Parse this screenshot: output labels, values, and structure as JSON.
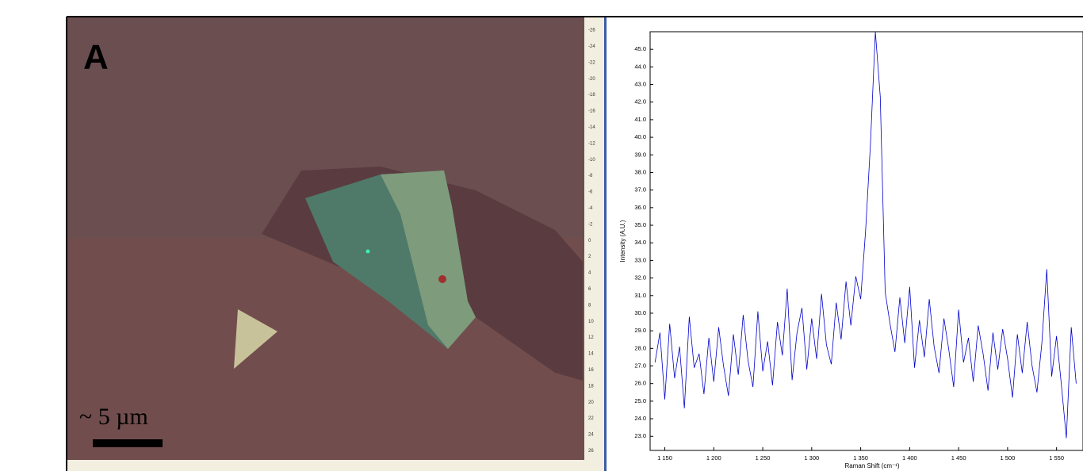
{
  "panel_label": "A",
  "scale_bar": "~ 5 µm",
  "ruler_labels": [
    "-26",
    "-24",
    "-22",
    "-20",
    "-18",
    "-16",
    "-14",
    "-12",
    "-10",
    "-8",
    "-6",
    "-4",
    "-2",
    "0",
    "2",
    "4",
    "6",
    "8",
    "10",
    "12",
    "14",
    "16",
    "18",
    "20",
    "22",
    "24",
    "26"
  ],
  "chart_data": {
    "type": "line",
    "ylabel": "Intensity (A.U.)",
    "xlabel": "Raman Shift (cm⁻¹)",
    "color": "#0000cc",
    "x": [
      1140,
      1145,
      1150,
      1155,
      1160,
      1165,
      1170,
      1175,
      1180,
      1185,
      1190,
      1195,
      1200,
      1205,
      1210,
      1215,
      1220,
      1225,
      1230,
      1235,
      1240,
      1245,
      1250,
      1255,
      1260,
      1265,
      1270,
      1275,
      1280,
      1285,
      1290,
      1295,
      1300,
      1305,
      1310,
      1315,
      1320,
      1325,
      1330,
      1335,
      1340,
      1345,
      1350,
      1355,
      1360,
      1365,
      1370,
      1375,
      1380,
      1385,
      1390,
      1395,
      1400,
      1405,
      1410,
      1415,
      1420,
      1425,
      1430,
      1435,
      1440,
      1445,
      1450,
      1455,
      1460,
      1465,
      1470,
      1475,
      1480,
      1485,
      1490,
      1495,
      1500,
      1505,
      1510,
      1515,
      1520,
      1525,
      1530,
      1535,
      1540,
      1545,
      1550,
      1555,
      1560,
      1565,
      1570
    ],
    "values": [
      27.2,
      28.9,
      25.1,
      29.4,
      26.3,
      28.1,
      24.6,
      29.8,
      26.9,
      27.7,
      25.4,
      28.6,
      26.1,
      29.2,
      27.0,
      25.3,
      28.8,
      26.5,
      29.9,
      27.3,
      25.8,
      30.1,
      26.7,
      28.4,
      25.9,
      29.5,
      27.6,
      31.4,
      26.2,
      28.9,
      30.3,
      26.8,
      29.7,
      27.4,
      31.1,
      28.2,
      27.1,
      30.6,
      28.5,
      31.8,
      29.3,
      32.1,
      30.8,
      34.7,
      39.6,
      46.0,
      42.3,
      31.2,
      29.4,
      27.8,
      30.9,
      28.3,
      31.5,
      26.9,
      29.6,
      27.5,
      30.8,
      28.1,
      26.6,
      29.7,
      27.9,
      25.8,
      30.2,
      27.2,
      28.6,
      26.1,
      29.3,
      27.7,
      25.6,
      28.9,
      26.8,
      29.1,
      27.4,
      25.2,
      28.8,
      26.6,
      29.5,
      27.0,
      25.5,
      28.3,
      32.5,
      26.4,
      28.7,
      25.9,
      22.9,
      29.2,
      26.0
    ],
    "xlim": [
      1135,
      1577
    ],
    "ylim": [
      22.2,
      46.0
    ],
    "xticks": [
      {
        "value": 1150,
        "label": "1 150"
      },
      {
        "value": 1200,
        "label": "1 200"
      },
      {
        "value": 1250,
        "label": "1 250"
      },
      {
        "value": 1300,
        "label": "1 300"
      },
      {
        "value": 1350,
        "label": "1 350"
      },
      {
        "value": 1400,
        "label": "1 400"
      },
      {
        "value": 1450,
        "label": "1 450"
      },
      {
        "value": 1500,
        "label": "1 500"
      },
      {
        "value": 1550,
        "label": "1 550"
      }
    ],
    "yticks": [
      {
        "value": 23,
        "label": "23.0"
      },
      {
        "value": 24,
        "label": "24.0"
      },
      {
        "value": 25,
        "label": "25.0"
      },
      {
        "value": 26,
        "label": "26.0"
      },
      {
        "value": 27,
        "label": "27.0"
      },
      {
        "value": 28,
        "label": "28.0"
      },
      {
        "value": 29,
        "label": "29.0"
      },
      {
        "value": 30,
        "label": "30.0"
      },
      {
        "value": 31,
        "label": "31.0"
      },
      {
        "value": 32,
        "label": "32.0"
      },
      {
        "value": 33,
        "label": "33.0"
      },
      {
        "value": 34,
        "label": "34.0"
      },
      {
        "value": 35,
        "label": "35.0"
      },
      {
        "value": 36,
        "label": "36.0"
      },
      {
        "value": 37,
        "label": "37.0"
      },
      {
        "value": 38,
        "label": "38.0"
      },
      {
        "value": 39,
        "label": "39.0"
      },
      {
        "value": 40,
        "label": "40.0"
      },
      {
        "value": 41,
        "label": "41.0"
      },
      {
        "value": 42,
        "label": "42.0"
      },
      {
        "value": 43,
        "label": "43.0"
      },
      {
        "value": 44,
        "label": "44.0"
      },
      {
        "value": 45,
        "label": "45.0"
      }
    ]
  }
}
